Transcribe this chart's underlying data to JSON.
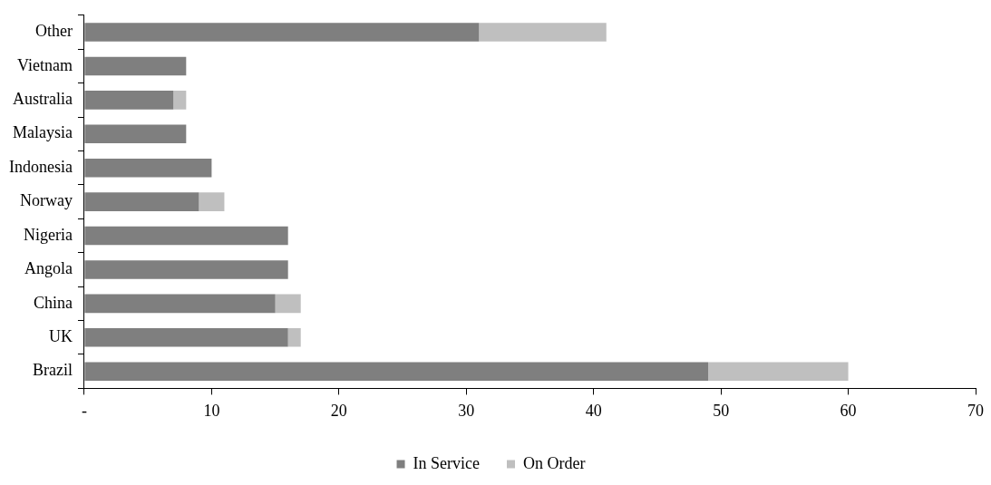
{
  "chart_data": {
    "type": "bar",
    "orientation": "horizontal",
    "stacked": true,
    "categories": [
      "Other",
      "Vietnam",
      "Australia",
      "Malaysia",
      "Indonesia",
      "Norway",
      "Nigeria",
      "Angola",
      "China",
      "UK",
      "Brazil"
    ],
    "series": [
      {
        "name": "In Service",
        "color": "#7f7f7f",
        "values": [
          31,
          8,
          7,
          8,
          10,
          9,
          16,
          16,
          15,
          16,
          49
        ]
      },
      {
        "name": "On Order",
        "color": "#bfbfbf",
        "values": [
          10,
          0,
          1,
          0,
          0,
          2,
          0,
          0,
          2,
          1,
          11
        ]
      }
    ],
    "xlim": [
      0,
      70
    ],
    "xticks": [
      {
        "value": 0,
        "label": "-"
      },
      10,
      20,
      30,
      40,
      50,
      60,
      70
    ],
    "grid": false,
    "legend": "bottom"
  }
}
